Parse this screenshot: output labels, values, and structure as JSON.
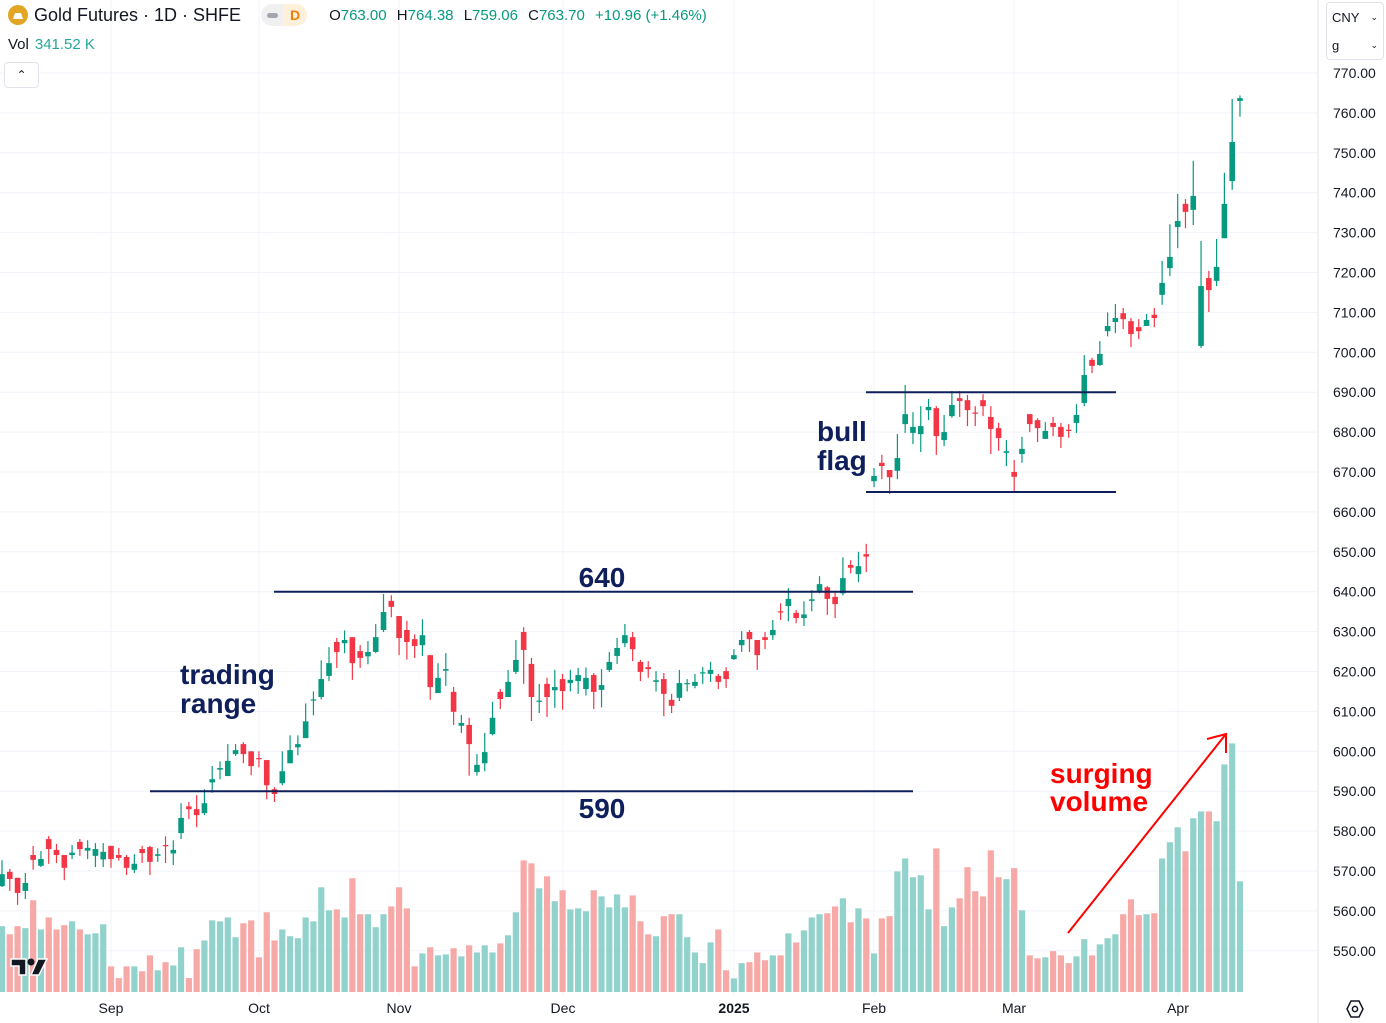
{
  "header": {
    "symbol_icon": "gold-bars-icon",
    "title": "Gold Futures · 1D · SHFE",
    "interval_badge": "D",
    "ohlc": {
      "o_label": "O",
      "o": "763.00",
      "h_label": "H",
      "h": "764.38",
      "l_label": "L",
      "l": "759.06",
      "c_label": "C",
      "c": "763.70",
      "change": "+10.96 (+1.46%)"
    }
  },
  "volume_legend": {
    "label": "Vol",
    "value": "341.52 K"
  },
  "collapse_button": "chevron-up-icon",
  "price_scale": {
    "currency": "CNY",
    "unit": "g"
  },
  "colors": {
    "up": "#089981",
    "down": "#f23645",
    "volume_up": "#92d2cc",
    "volume_down": "#f7a9a7",
    "annotation": "#0f1f5c",
    "annotation_highlight": "#ff0000",
    "grid": "#f0f3fa"
  },
  "chart_data": {
    "type": "candlestick",
    "title": "Gold Futures · 1D · SHFE",
    "ylim": [
      544,
      772
    ],
    "grid": true,
    "y_ticks": [
      "770.00",
      "760.00",
      "750.00",
      "740.00",
      "730.00",
      "720.00",
      "710.00",
      "700.00",
      "690.00",
      "680.00",
      "670.00",
      "660.00",
      "650.00",
      "640.00",
      "630.00",
      "620.00",
      "610.00",
      "600.00",
      "590.00",
      "580.00",
      "570.00",
      "560.00",
      "550.00"
    ],
    "x_tick_labels": [
      "Sep",
      "Oct",
      "Nov",
      "Dec",
      "2025",
      "Feb",
      "Mar",
      "Apr"
    ],
    "ohlc_fields": [
      "open",
      "high",
      "low",
      "close"
    ],
    "ohlc": [
      [
        566.2,
        572.7,
        566,
        569.2
      ],
      [
        569.8,
        570.5,
        565,
        568
      ],
      [
        568.3,
        568.3,
        561.5,
        564.5
      ],
      [
        565,
        569.5,
        563,
        567
      ],
      [
        574,
        576.3,
        570.3,
        572.8
      ],
      [
        571.3,
        575,
        571,
        573
      ],
      [
        578,
        578.8,
        571.8,
        575.5
      ],
      [
        575.3,
        576.8,
        572,
        574
      ],
      [
        574,
        574,
        567.7,
        570.8
      ],
      [
        574,
        576.5,
        573,
        574.6
      ],
      [
        577.3,
        578,
        573.8,
        575.5
      ],
      [
        575.1,
        577.7,
        573,
        575.8
      ],
      [
        573.8,
        577,
        571,
        575.5
      ],
      [
        572.9,
        577,
        571,
        574.8
      ],
      [
        576.3,
        576.3,
        570.8,
        573
      ],
      [
        574,
        575.8,
        572.6,
        573.3
      ],
      [
        573.5,
        574,
        569,
        570.8
      ],
      [
        570.3,
        574.2,
        569.5,
        571.8
      ],
      [
        575.5,
        576.3,
        572,
        574.5
      ],
      [
        576,
        576.3,
        569,
        572.3
      ],
      [
        573.8,
        575.7,
        572.3,
        574.2
      ],
      [
        576.5,
        578.7,
        572,
        576.3
      ],
      [
        574.4,
        577.7,
        571.5,
        575.3
      ],
      [
        579.5,
        587,
        578,
        583.3
      ],
      [
        586.2,
        587.3,
        583,
        585.5
      ],
      [
        585.5,
        589,
        581,
        584
      ],
      [
        584.5,
        590.5,
        584,
        587
      ],
      [
        592.2,
        596.3,
        589.6,
        593
      ],
      [
        595.4,
        597.5,
        593,
        595.8
      ],
      [
        593.8,
        601.8,
        593.8,
        597.6
      ],
      [
        599.3,
        601.8,
        598.8,
        600.3
      ],
      [
        601.8,
        602.3,
        597,
        599.3
      ],
      [
        600,
        600,
        594,
        596.3
      ],
      [
        598.3,
        600,
        596,
        598
      ],
      [
        597.8,
        597.8,
        588,
        591.5
      ],
      [
        590.5,
        591,
        587.3,
        589.3
      ],
      [
        592,
        600,
        591.5,
        595
      ],
      [
        597,
        604,
        597,
        600.3
      ],
      [
        601,
        604,
        599,
        601.8
      ],
      [
        603.3,
        612,
        603.3,
        607.5
      ],
      [
        612.7,
        615,
        609,
        613
      ],
      [
        613.6,
        622.8,
        613,
        618.1
      ],
      [
        618.9,
        626.1,
        617.6,
        622.1
      ],
      [
        627.4,
        628.4,
        620.9,
        624.9
      ],
      [
        627.1,
        630.3,
        624.6,
        627.9
      ],
      [
        628.6,
        628.6,
        617.9,
        622.1
      ],
      [
        625.1,
        626.6,
        620.9,
        623.4
      ],
      [
        623.8,
        627.6,
        621.8,
        624.9
      ],
      [
        624.9,
        631.9,
        624.6,
        628.6
      ],
      [
        630.4,
        639.4,
        629.9,
        634.9
      ],
      [
        637.7,
        639.1,
        633.6,
        636.2
      ],
      [
        633.9,
        633.9,
        624.1,
        628.4
      ],
      [
        630.4,
        632.7,
        623,
        627.4
      ],
      [
        628.1,
        629.3,
        623.4,
        626.4
      ],
      [
        626.6,
        633.1,
        623.9,
        629.1
      ],
      [
        624.1,
        624.1,
        612.9,
        616.1
      ],
      [
        614.6,
        622.1,
        614.6,
        618.4
      ],
      [
        620.2,
        624.6,
        616.4,
        620.6
      ],
      [
        614.9,
        616.1,
        606.6,
        609.9
      ],
      [
        606.4,
        609.1,
        604.6,
        607.1
      ],
      [
        606.6,
        608.4,
        593.9,
        601.8
      ],
      [
        594.8,
        599.3,
        593.9,
        596.6
      ],
      [
        597,
        604.6,
        595,
        599.8
      ],
      [
        604.3,
        612.4,
        604,
        608.4
      ],
      [
        614.9,
        615.6,
        610.6,
        613.1
      ],
      [
        613.6,
        620.4,
        613.6,
        617.4
      ],
      [
        619.9,
        627.9,
        619.4,
        622.9
      ],
      [
        629.9,
        631.1,
        616.9,
        625.4
      ],
      [
        621.9,
        623.4,
        607.6,
        613.6
      ],
      [
        612.4,
        616.9,
        609.6,
        612.7
      ],
      [
        616.9,
        618.4,
        608.6,
        613.6
      ],
      [
        615.3,
        620.4,
        610.9,
        616.1
      ],
      [
        618.1,
        619.4,
        610.4,
        615.1
      ],
      [
        617.1,
        620.4,
        615,
        617.9
      ],
      [
        617.6,
        620.9,
        614.4,
        619.1
      ],
      [
        615.6,
        621,
        614,
        618.4
      ],
      [
        619.1,
        619.6,
        610.6,
        614.9
      ],
      [
        615.4,
        620.6,
        611,
        616.6
      ],
      [
        620.4,
        624.9,
        619.9,
        622.4
      ],
      [
        623.9,
        628.4,
        621.9,
        625.9
      ],
      [
        627.1,
        631.9,
        626.1,
        629.1
      ],
      [
        628.6,
        629.9,
        622.6,
        625.6
      ],
      [
        622.4,
        622.9,
        617.6,
        619.9
      ],
      [
        621.1,
        622.6,
        618.4,
        620.6
      ],
      [
        617.4,
        620.1,
        615,
        617.8
      ],
      [
        618.1,
        619.6,
        608.8,
        614.4
      ],
      [
        612.9,
        614.4,
        609.6,
        611.4
      ],
      [
        613.4,
        620.4,
        612.6,
        617.1
      ],
      [
        616.9,
        618.1,
        615,
        617.1
      ],
      [
        616.4,
        619.4,
        615.8,
        617.4
      ],
      [
        619.5,
        621.1,
        616.9,
        619.8
      ],
      [
        619.4,
        622.4,
        617.4,
        620.4
      ],
      [
        618.9,
        619.4,
        615.6,
        617.4
      ],
      [
        620.1,
        621.1,
        615.9,
        618.1
      ],
      [
        623.1,
        625.6,
        622.9,
        624.1
      ],
      [
        626.6,
        630.1,
        624.9,
        627.9
      ],
      [
        629.9,
        630.4,
        624.9,
        628.1
      ],
      [
        627.9,
        627.9,
        620.4,
        624.1
      ],
      [
        628.6,
        629.9,
        625.6,
        627.9
      ],
      [
        629.1,
        632.9,
        627.9,
        630.4
      ],
      [
        635.1,
        637.1,
        632.9,
        634.8
      ],
      [
        636.4,
        640.9,
        632.6,
        638.2
      ],
      [
        634.7,
        635.4,
        632.1,
        633.4
      ],
      [
        633.4,
        637.6,
        631.4,
        634.3
      ],
      [
        637.7,
        640.4,
        635.1,
        638.1
      ],
      [
        639.9,
        643.9,
        639.6,
        641.9
      ],
      [
        641.1,
        641.4,
        634.2,
        638.2
      ],
      [
        638.7,
        640.1,
        633.4,
        636.9
      ],
      [
        639.6,
        648.6,
        639.1,
        643.4
      ],
      [
        646.7,
        647.9,
        644.6,
        646
      ],
      [
        644.4,
        650,
        642.4,
        646.4
      ],
      [
        649.4,
        652,
        644.9,
        648.8
      ],
      [
        667.7,
        671,
        666.2,
        669
      ],
      [
        672.3,
        674.3,
        668.2,
        671.5
      ],
      [
        670.5,
        670.5,
        664.5,
        668.7
      ],
      [
        670.3,
        679.5,
        668.2,
        673.5
      ],
      [
        682,
        691.8,
        679.8,
        684.5
      ],
      [
        679.8,
        685,
        677,
        681.3
      ],
      [
        679.5,
        686.5,
        675,
        681.5
      ],
      [
        685.5,
        688.3,
        683,
        686.3
      ],
      [
        686,
        686.5,
        674.3,
        679
      ],
      [
        678,
        684.3,
        676.5,
        680
      ],
      [
        684,
        690.3,
        683.6,
        686.8
      ],
      [
        688.5,
        690.3,
        683.8,
        687.8
      ],
      [
        688,
        689.3,
        681.5,
        685.5
      ],
      [
        684.9,
        686.5,
        681.5,
        684.7
      ],
      [
        688,
        689.5,
        684,
        686.5
      ],
      [
        683.8,
        686.5,
        674.5,
        680.8
      ],
      [
        681,
        682.3,
        675.3,
        678.5
      ],
      [
        674.8,
        678,
        671.5,
        675.2
      ],
      [
        670,
        673,
        665.2,
        668.8
      ],
      [
        674.5,
        678.8,
        672.3,
        675.8
      ],
      [
        684.5,
        684.5,
        680,
        682
      ],
      [
        683,
        683.5,
        677.5,
        681
      ],
      [
        678.3,
        682.5,
        678.3,
        680.3
      ],
      [
        682.3,
        683.8,
        679,
        681.3
      ],
      [
        681.3,
        682.3,
        676,
        678.8
      ],
      [
        680.6,
        682,
        678.6,
        680.4
      ],
      [
        682.3,
        687,
        679.8,
        684.3
      ],
      [
        687.3,
        699.3,
        686.5,
        694.3
      ],
      [
        698.1,
        698.6,
        694.8,
        696.6
      ],
      [
        696.8,
        702.8,
        696.6,
        699.6
      ],
      [
        705.3,
        710,
        704,
        706.6
      ],
      [
        707.6,
        712.1,
        704.8,
        708.6
      ],
      [
        709.8,
        711.1,
        705.8,
        708.3
      ],
      [
        707.8,
        708.6,
        701.3,
        704.6
      ],
      [
        706.3,
        708.3,
        703.3,
        705.3
      ],
      [
        706.6,
        709.6,
        706.6,
        708.1
      ],
      [
        709.4,
        711.1,
        706.3,
        708.6
      ],
      [
        714.4,
        722.9,
        711.9,
        717.4
      ],
      [
        721.1,
        732.1,
        719.1,
        723.9
      ],
      [
        731.4,
        739.7,
        726.1,
        732.9
      ],
      [
        737.2,
        738.4,
        731.1,
        735.2
      ],
      [
        735.7,
        748,
        731.9,
        739.2
      ],
      [
        701.6,
        727.9,
        701.1,
        716.6
      ],
      [
        718.6,
        720.4,
        710.1,
        715.6
      ],
      [
        717.9,
        728.4,
        716.6,
        721.4
      ],
      [
        728.6,
        745,
        728.6,
        737.2
      ],
      [
        742.9,
        763.5,
        740.7,
        752.7
      ],
      [
        763,
        764.38,
        759.06,
        763.7
      ]
    ],
    "volume_unit": "K",
    "volume": [
      203,
      178,
      203,
      197,
      283,
      193,
      230,
      193,
      206,
      218,
      193,
      178,
      181,
      209,
      79,
      43,
      79,
      79,
      64,
      113,
      67,
      92,
      82,
      138,
      43,
      132,
      159,
      221,
      218,
      230,
      169,
      212,
      221,
      107,
      246,
      159,
      193,
      172,
      166,
      230,
      218,
      323,
      252,
      255,
      230,
      351,
      240,
      240,
      200,
      240,
      264,
      323,
      258,
      79,
      119,
      138,
      113,
      116,
      135,
      110,
      144,
      122,
      144,
      122,
      150,
      175,
      246,
      406,
      397,
      320,
      357,
      280,
      314,
      255,
      258,
      249,
      314,
      295,
      261,
      301,
      261,
      298,
      218,
      178,
      172,
      234,
      240,
      240,
      169,
      122,
      89,
      153,
      193,
      67,
      42,
      89,
      92,
      122,
      98,
      113,
      113,
      181,
      153,
      190,
      230,
      240,
      243,
      264,
      289,
      215,
      258,
      227,
      119,
      227,
      234,
      372,
      412,
      354,
      360,
      255,
      443,
      203,
      261,
      289,
      385,
      311,
      295,
      437,
      354,
      348,
      382,
      252,
      113,
      104,
      107,
      126,
      113,
      89,
      110,
      163,
      113,
      147,
      166,
      178,
      240,
      286,
      237,
      240,
      243,
      412,
      462,
      508,
      434,
      536,
      557,
      557,
      527,
      702,
      767,
      341.52
    ],
    "levels": [
      {
        "price": 640,
        "label": "640"
      },
      {
        "price": 590,
        "label": "590"
      },
      {
        "price": 690,
        "label": ""
      },
      {
        "price": 665,
        "label": ""
      }
    ],
    "annotations": {
      "trading_range": [
        "trading",
        "range"
      ],
      "bull_flag": [
        "bull",
        "flag"
      ],
      "surging_volume": [
        "surging",
        "volume"
      ]
    }
  }
}
